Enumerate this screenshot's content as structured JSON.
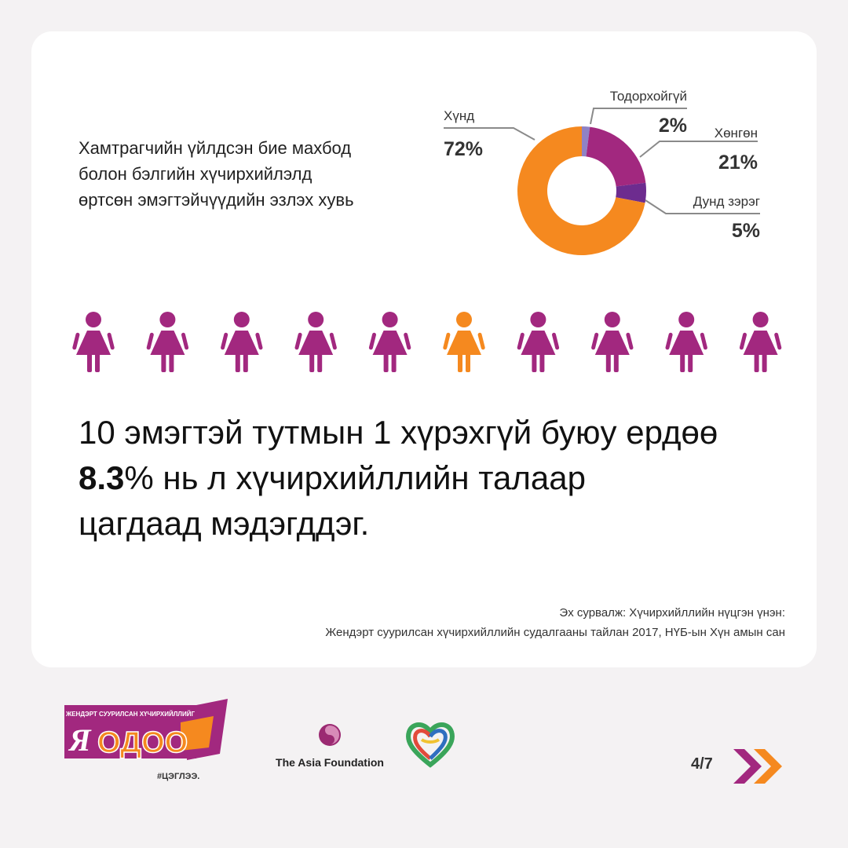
{
  "chart_title": [
    "Хамтрагчийн үйлдсэн бие махбод",
    "болон бэлгийн хүчирхийлэлд",
    "өртсөн эмэгтэйчүүдийн эзлэх хувь"
  ],
  "chart_data": [
    {
      "type": "pie",
      "donut": true,
      "slices": [
        {
          "label": "Тодорхойгүй",
          "value": 2,
          "value_label": "2%",
          "color": "#8f82c5"
        },
        {
          "label": "Хөнгөн",
          "value": 21,
          "value_label": "21%",
          "color": "#a2287f"
        },
        {
          "label": "Дунд зэрэг",
          "value": 5,
          "value_label": "5%",
          "color": "#6d2c8f"
        },
        {
          "label": "Хүнд",
          "value": 72,
          "value_label": "72%",
          "color": "#f5891f"
        }
      ]
    },
    {
      "type": "pictogram",
      "total": 10,
      "highlighted": [
        6
      ],
      "colors": {
        "default": "#a2287f",
        "highlight": "#f5891f"
      }
    }
  ],
  "headline": {
    "line1": "10 эмэгтэй тутмын 1 хүрэхгүй буюу ердөө",
    "line2_bold": "8.3",
    "line2_rest": "% нь л хүчирхийллийн талаар",
    "line3": "цагдаад мэдэгддэг."
  },
  "source": {
    "line1": "Эх сурвалж: Хүчирхийллийн нүцгэн үнэн:",
    "line2": "Жендэрт суурилсан хүчирхийллийн судалгааны тайлан 2017, НҮБ-ын Хүн амын сан"
  },
  "footer": {
    "logo_small": "ЖЕНДЭРТ СУУРИЛСАН ХҮЧИРХИЙЛЛИЙГ",
    "logo_main_1": "Я",
    "logo_main_2": "ОДОО",
    "logo_tag": "#ЦЭГЛЭЭ.",
    "partner": "The Asia Foundation",
    "page_indicator": "4/7"
  },
  "colors": {
    "purple": "#a2287f",
    "orange": "#f5891f",
    "background": "#f4f2f3"
  },
  "icons": {
    "next": "double-chevron-right-icon",
    "figure": "woman-icon"
  }
}
